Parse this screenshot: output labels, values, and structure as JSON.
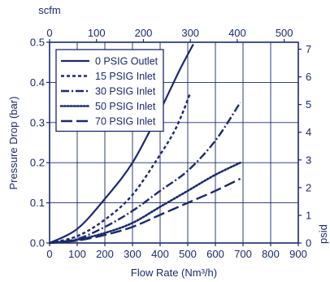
{
  "chart_data": {
    "type": "line",
    "xlabel": "Flow Rate (Nm³/h)",
    "ylabel": "Pressure Drop (bar)",
    "top_axis_label": "scfm",
    "right_axis_label": "psid",
    "x_ticks": [
      "0",
      "100",
      "200",
      "300",
      "400",
      "500",
      "600",
      "700",
      "800",
      "900"
    ],
    "y_ticks": [
      "0.0",
      "0.1",
      "0.2",
      "0.3",
      "0.4",
      "0.5"
    ],
    "top_ticks": [
      "0",
      "100",
      "200",
      "300",
      "400",
      "500"
    ],
    "right_ticks": [
      "0",
      "1",
      "2",
      "3",
      "4",
      "5",
      "6",
      "7"
    ],
    "xlim": [
      0,
      900
    ],
    "ylim": [
      0,
      0.5
    ],
    "top_lim": [
      0,
      530
    ],
    "right_lim": [
      0,
      7.25
    ],
    "grid": true,
    "legend_position": "top-left",
    "series": [
      {
        "name": "0 PSIG Outlet",
        "dash": "solid",
        "x": [
          0,
          100,
          200,
          300,
          400,
          470,
          520
        ],
        "y": [
          0,
          0.035,
          0.11,
          0.2,
          0.33,
          0.43,
          0.495
        ]
      },
      {
        "name": "15 PSIG Inlet",
        "dash": "dash-short",
        "x": [
          0,
          100,
          200,
          300,
          400,
          460,
          510
        ],
        "y": [
          0,
          0.017,
          0.058,
          0.12,
          0.22,
          0.29,
          0.375
        ]
      },
      {
        "name": "30 PSIG Inlet",
        "dash": "dash-dot",
        "x": [
          0,
          100,
          200,
          300,
          400,
          500,
          600,
          690
        ],
        "y": [
          0,
          0.01,
          0.04,
          0.08,
          0.13,
          0.18,
          0.255,
          0.35
        ]
      },
      {
        "name": "50 PSIG Inlet",
        "dash": "dotted",
        "x": [
          0,
          100,
          200,
          300,
          400,
          500,
          600,
          690
        ],
        "y": [
          0,
          0.008,
          0.025,
          0.05,
          0.09,
          0.13,
          0.17,
          0.2
        ]
      },
      {
        "name": "70 PSIG Inlet",
        "dash": "dash-long",
        "x": [
          0,
          100,
          200,
          300,
          400,
          500,
          600,
          690
        ],
        "y": [
          0,
          0.006,
          0.02,
          0.04,
          0.07,
          0.1,
          0.13,
          0.16
        ]
      }
    ]
  },
  "colors": {
    "ink": "#1b2a6b",
    "background": "#ffffff"
  }
}
